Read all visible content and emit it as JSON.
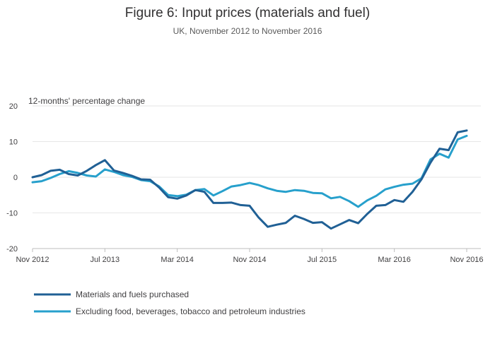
{
  "chart_data": {
    "type": "line",
    "title": "Figure 6: Input prices (materials and fuel)",
    "subtitle": "UK, November 2012 to November 2016",
    "ylabel": "12-months' percentage change",
    "xlabel": "",
    "ylim": [
      -20,
      20
    ],
    "yticks": [
      -20,
      -10,
      0,
      10,
      20
    ],
    "grid": true,
    "legend_position": "bottom-left",
    "x": [
      "2012-11",
      "2012-12",
      "2013-01",
      "2013-02",
      "2013-03",
      "2013-04",
      "2013-05",
      "2013-06",
      "2013-07",
      "2013-08",
      "2013-09",
      "2013-10",
      "2013-11",
      "2013-12",
      "2014-01",
      "2014-02",
      "2014-03",
      "2014-04",
      "2014-05",
      "2014-06",
      "2014-07",
      "2014-08",
      "2014-09",
      "2014-10",
      "2014-11",
      "2014-12",
      "2015-01",
      "2015-02",
      "2015-03",
      "2015-04",
      "2015-05",
      "2015-06",
      "2015-07",
      "2015-08",
      "2015-09",
      "2015-10",
      "2015-11",
      "2015-12",
      "2016-01",
      "2016-02",
      "2016-03",
      "2016-04",
      "2016-05",
      "2016-06",
      "2016-07",
      "2016-08",
      "2016-09",
      "2016-10",
      "2016-11"
    ],
    "xtick_labels": [
      {
        "x": "2012-11",
        "label": "Nov 2012"
      },
      {
        "x": "2013-07",
        "label": "Jul 2013"
      },
      {
        "x": "2014-03",
        "label": "Mar 2014"
      },
      {
        "x": "2014-11",
        "label": "Nov 2014"
      },
      {
        "x": "2015-07",
        "label": "Jul 2015"
      },
      {
        "x": "2016-03",
        "label": "Mar 2016"
      },
      {
        "x": "2016-11",
        "label": "Nov 2016"
      }
    ],
    "series": [
      {
        "name": "Materials and fuels purchased",
        "color": "#206095",
        "values": [
          0.0,
          0.6,
          1.8,
          2.1,
          0.9,
          0.5,
          1.8,
          3.4,
          4.8,
          1.9,
          1.2,
          0.4,
          -0.6,
          -0.7,
          -2.9,
          -5.6,
          -6.0,
          -5.1,
          -3.6,
          -4.1,
          -7.2,
          -7.2,
          -7.1,
          -7.8,
          -8.0,
          -11.3,
          -13.9,
          -13.3,
          -12.8,
          -10.8,
          -11.7,
          -12.8,
          -12.6,
          -14.4,
          -13.2,
          -12.0,
          -12.9,
          -10.3,
          -8.0,
          -7.8,
          -6.4,
          -6.9,
          -4.1,
          -0.6,
          4.1,
          8.0,
          7.6,
          12.6,
          13.1
        ]
      },
      {
        "name": "Excluding food, beverages, tobacco and petroleum industries",
        "color": "#27a0cc",
        "values": [
          -1.4,
          -1.1,
          -0.2,
          0.9,
          1.7,
          1.2,
          0.5,
          0.2,
          2.2,
          1.5,
          0.6,
          0.1,
          -0.8,
          -1.1,
          -2.6,
          -5.0,
          -5.3,
          -4.9,
          -3.6,
          -3.3,
          -5.1,
          -3.9,
          -2.6,
          -2.2,
          -1.6,
          -2.2,
          -3.1,
          -3.8,
          -4.1,
          -3.6,
          -3.8,
          -4.4,
          -4.5,
          -5.9,
          -5.5,
          -6.7,
          -8.3,
          -6.5,
          -5.2,
          -3.4,
          -2.7,
          -2.1,
          -1.8,
          -0.3,
          5.0,
          6.6,
          5.5,
          10.6,
          11.6
        ]
      }
    ]
  }
}
